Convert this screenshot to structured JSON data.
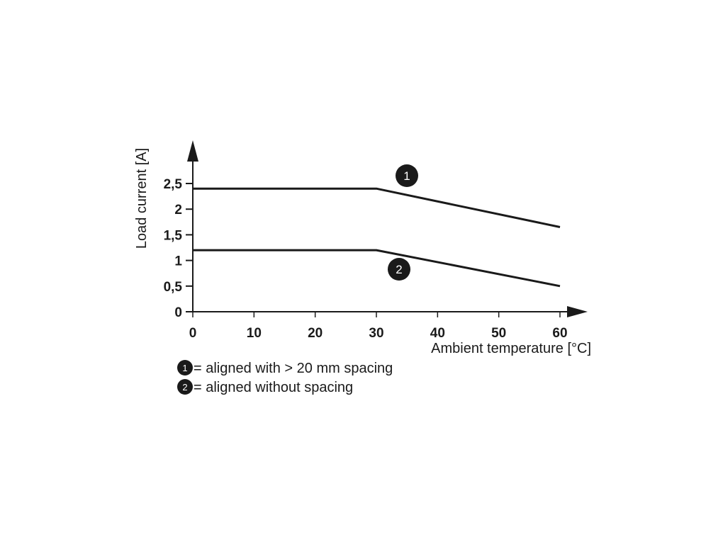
{
  "chart_data": {
    "type": "line",
    "xlabel": "Ambient temperature [°C]",
    "ylabel": "Load current [A]",
    "xlim": [
      0,
      60
    ],
    "ylim": [
      0,
      2.5
    ],
    "x_ticks": [
      "0",
      "10",
      "20",
      "30",
      "40",
      "50",
      "60"
    ],
    "y_ticks": [
      "0",
      "0,5",
      "1",
      "1,5",
      "2",
      "2,5"
    ],
    "grid": false,
    "series": [
      {
        "marker": "1",
        "x": [
          0,
          30,
          60
        ],
        "y": [
          2.4,
          2.4,
          1.65
        ]
      },
      {
        "marker": "2",
        "x": [
          0,
          30,
          60
        ],
        "y": [
          1.2,
          1.2,
          0.5
        ]
      }
    ],
    "legend": [
      {
        "marker": "1",
        "text": "= aligned with > 20 mm spacing"
      },
      {
        "marker": "2",
        "text": "= aligned without spacing"
      }
    ],
    "colors": {
      "line": "#1a1a1a",
      "marker_fill": "#1a1a1a",
      "marker_text": "#ffffff"
    }
  }
}
